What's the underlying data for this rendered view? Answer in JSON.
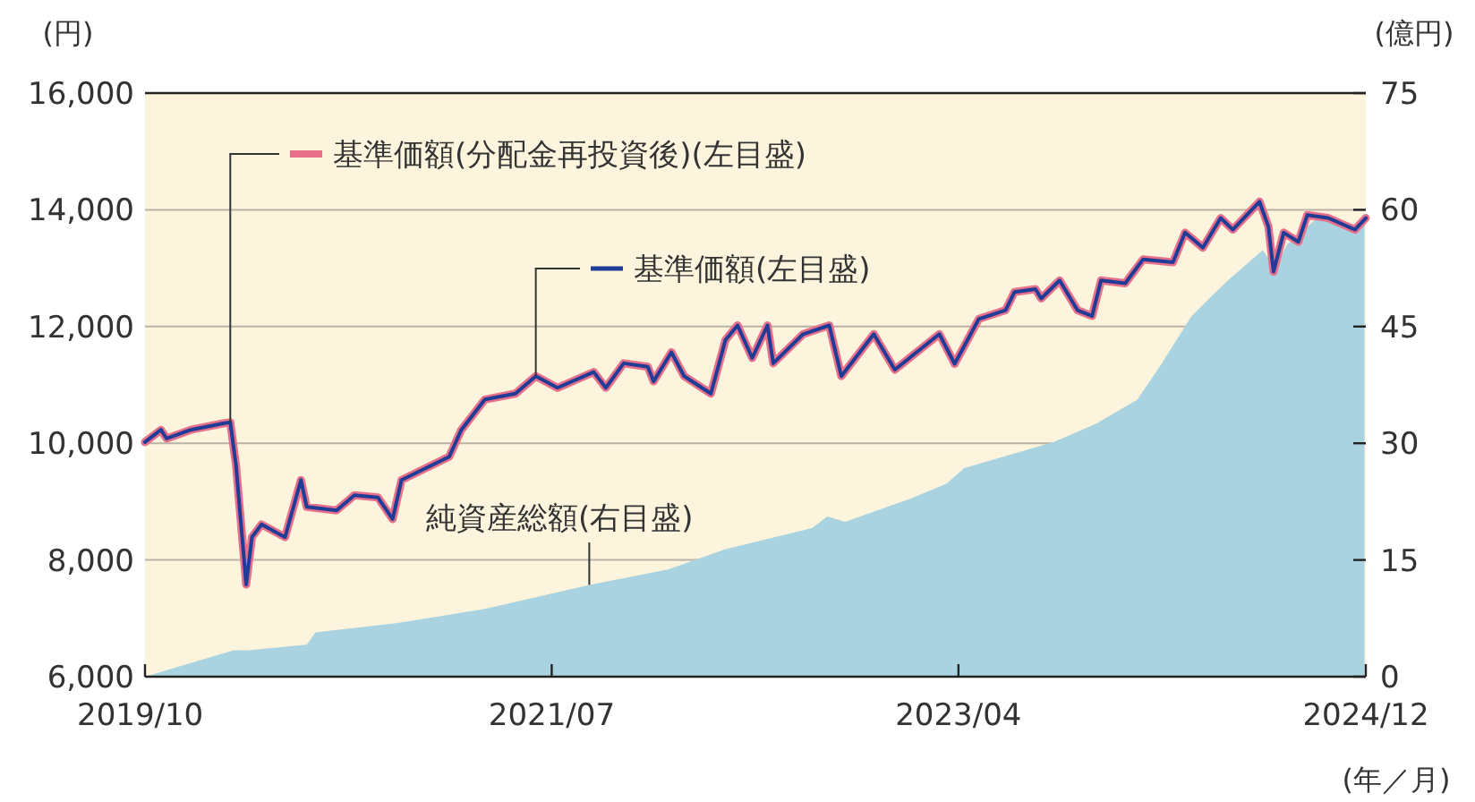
{
  "chart_data": {
    "type": "line",
    "xlabel": "(年／月)",
    "ylabel": "(円)",
    "y2label": "(億円)",
    "xlim": [
      "2019-10-01",
      "2024-12-31"
    ],
    "xticks": [
      {
        "value": "2019-10-01",
        "label": "2019/10"
      },
      {
        "value": "2021-07-01",
        "label": "2021/07"
      },
      {
        "value": "2023-04-01",
        "label": "2023/04"
      },
      {
        "value": "2024-12-31",
        "label": "2024/12"
      }
    ],
    "ylim": [
      6000,
      16000
    ],
    "yticks": [
      {
        "value": 6000,
        "label": "6,000"
      },
      {
        "value": 8000,
        "label": "8,000"
      },
      {
        "value": 10000,
        "label": "10,000"
      },
      {
        "value": 12000,
        "label": "12,000"
      },
      {
        "value": 14000,
        "label": "14,000"
      },
      {
        "value": 16000,
        "label": "16,000"
      }
    ],
    "y2lim": [
      0,
      75
    ],
    "y2ticks": [
      0,
      15,
      30,
      45,
      60,
      75
    ],
    "grid": "y",
    "legend": "top left",
    "series": [
      {
        "name": "純資産総額(右目盛)",
        "type": "area",
        "axis": "y2",
        "color": "#a9d3e0",
        "x": [
          "2019-10-01",
          "2020-02-17",
          "2020-03-11",
          "2020-06-11",
          "2020-06-25",
          "2020-11-01",
          "2021-03-18",
          "2021-08-29",
          "2022-01-01",
          "2022-03-31",
          "2022-08-14",
          "2022-09-07",
          "2022-10-05",
          "2023-01-16",
          "2023-03-13",
          "2023-04-10",
          "2023-08-30",
          "2023-11-03",
          "2024-01-07",
          "2024-02-14",
          "2024-04-01",
          "2024-04-29",
          "2024-05-28",
          "2024-07-22",
          "2024-08-11",
          "2024-08-29",
          "2024-10-16",
          "2024-12-10",
          "2024-12-29"
        ],
        "values": [
          0,
          3.4,
          3.4,
          4.1,
          5.7,
          6.9,
          8.7,
          11.8,
          13.8,
          16.4,
          19.1,
          20.6,
          19.9,
          22.9,
          24.8,
          26.8,
          30.2,
          32.5,
          35.6,
          40.2,
          46.3,
          48.6,
          50.9,
          54.8,
          52.5,
          55.5,
          59.0,
          57.8,
          59.0
        ]
      },
      {
        "name": "基準価額(分配金再投資後)(左目盛)",
        "color": "#e8708a",
        "x": [
          "2019-10-01",
          "2019-10-26",
          "2019-11-04",
          "2019-12-12",
          "2020-02-01",
          "2020-02-12",
          "2020-02-21",
          "2020-03-08",
          "2020-03-17",
          "2020-04-01",
          "2020-05-08",
          "2020-06-02",
          "2020-06-11",
          "2020-07-28",
          "2020-08-25",
          "2020-10-01",
          "2020-10-24",
          "2020-11-07",
          "2021-01-21",
          "2021-02-09",
          "2021-03-18",
          "2021-05-05",
          "2021-06-06",
          "2021-07-10",
          "2021-09-05",
          "2021-09-24",
          "2021-10-22",
          "2021-11-29",
          "2021-12-08",
          "2022-01-05",
          "2022-01-25",
          "2022-03-08",
          "2022-03-31",
          "2022-04-19",
          "2022-05-12",
          "2022-06-05",
          "2022-06-14",
          "2022-07-31",
          "2022-09-10",
          "2022-09-29",
          "2022-11-19",
          "2022-12-22",
          "2023-03-02",
          "2023-03-26",
          "2023-05-03",
          "2023-06-14",
          "2023-06-28",
          "2023-07-31",
          "2023-08-09",
          "2023-09-07",
          "2023-10-05",
          "2023-10-28",
          "2023-11-11",
          "2023-12-19",
          "2024-01-16",
          "2024-03-03",
          "2024-03-22",
          "2024-04-19",
          "2024-05-17",
          "2024-06-05",
          "2024-07-17",
          "2024-07-31",
          "2024-08-08",
          "2024-08-24",
          "2024-09-16",
          "2024-09-30",
          "2024-11-02",
          "2024-12-14",
          "2024-12-31"
        ],
        "values": [
          10020,
          10230,
          10080,
          10230,
          10340,
          10360,
          9620,
          7580,
          8390,
          8610,
          8390,
          9370,
          8910,
          8850,
          9110,
          9070,
          8700,
          9370,
          9770,
          10230,
          10750,
          10850,
          11150,
          10950,
          11220,
          10950,
          11370,
          11310,
          11060,
          11560,
          11150,
          10850,
          11770,
          12020,
          11460,
          12020,
          11370,
          11870,
          12020,
          11150,
          11870,
          11260,
          11870,
          11360,
          12130,
          12280,
          12590,
          12640,
          12480,
          12790,
          12280,
          12180,
          12790,
          12740,
          13150,
          13100,
          13610,
          13350,
          13860,
          13660,
          14140,
          13710,
          12940,
          13610,
          13450,
          13910,
          13860,
          13660,
          13860
        ]
      },
      {
        "name": "基準価額(左目盛)",
        "color": "#1f3c96",
        "x": [
          "2019-10-01",
          "2019-10-26",
          "2019-11-04",
          "2019-12-12",
          "2020-02-01",
          "2020-02-12",
          "2020-02-21",
          "2020-03-08",
          "2020-03-17",
          "2020-04-01",
          "2020-05-08",
          "2020-06-02",
          "2020-06-11",
          "2020-07-28",
          "2020-08-25",
          "2020-10-01",
          "2020-10-24",
          "2020-11-07",
          "2021-01-21",
          "2021-02-09",
          "2021-03-18",
          "2021-05-05",
          "2021-06-06",
          "2021-07-10",
          "2021-09-05",
          "2021-09-24",
          "2021-10-22",
          "2021-11-29",
          "2021-12-08",
          "2022-01-05",
          "2022-01-25",
          "2022-03-08",
          "2022-03-31",
          "2022-04-19",
          "2022-05-12",
          "2022-06-05",
          "2022-06-14",
          "2022-07-31",
          "2022-09-10",
          "2022-09-29",
          "2022-11-19",
          "2022-12-22",
          "2023-03-02",
          "2023-03-26",
          "2023-05-03",
          "2023-06-14",
          "2023-06-28",
          "2023-07-31",
          "2023-08-09",
          "2023-09-07",
          "2023-10-05",
          "2023-10-28",
          "2023-11-11",
          "2023-12-19",
          "2024-01-16",
          "2024-03-03",
          "2024-03-22",
          "2024-04-19",
          "2024-05-17",
          "2024-06-05",
          "2024-07-17",
          "2024-07-31",
          "2024-08-08",
          "2024-08-24",
          "2024-09-16",
          "2024-09-30",
          "2024-11-02",
          "2024-12-14",
          "2024-12-31"
        ],
        "values": [
          10020,
          10230,
          10080,
          10230,
          10340,
          10360,
          9620,
          7580,
          8390,
          8610,
          8390,
          9370,
          8910,
          8850,
          9110,
          9070,
          8700,
          9370,
          9770,
          10230,
          10750,
          10850,
          11150,
          10950,
          11220,
          10950,
          11370,
          11310,
          11060,
          11560,
          11150,
          10850,
          11770,
          12020,
          11460,
          12020,
          11370,
          11870,
          12020,
          11150,
          11870,
          11260,
          11870,
          11360,
          12130,
          12280,
          12590,
          12640,
          12480,
          12790,
          12280,
          12180,
          12790,
          12740,
          13150,
          13100,
          13610,
          13350,
          13860,
          13660,
          14140,
          13710,
          12940,
          13610,
          13450,
          13910,
          13860,
          13660,
          13860
        ]
      }
    ]
  }
}
